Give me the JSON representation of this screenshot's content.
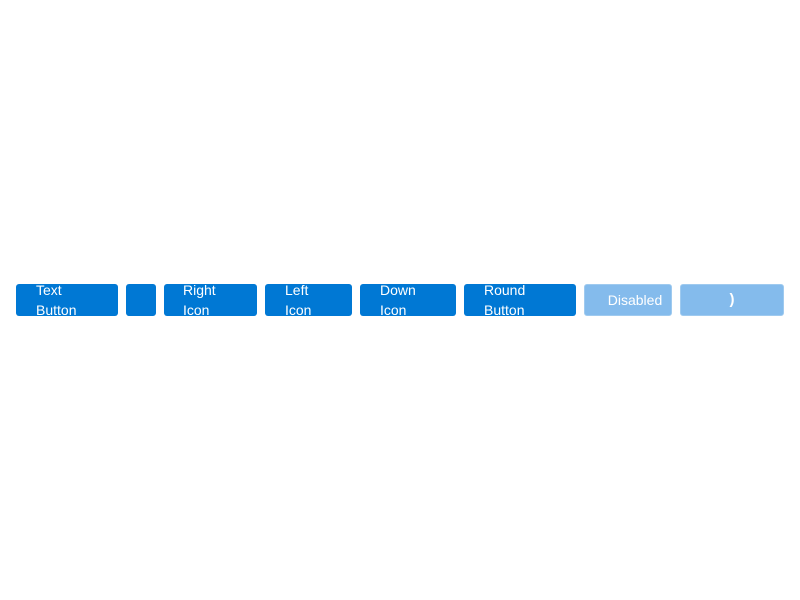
{
  "toolbar": {
    "buttons": [
      {
        "label": "Text Button"
      },
      {
        "label": ""
      },
      {
        "label": "Right Icon"
      },
      {
        "label": "Left Icon"
      },
      {
        "label": "Down Icon"
      },
      {
        "label": "Round Button"
      },
      {
        "label": "Disabled"
      },
      {
        "glyph": ")"
      }
    ]
  },
  "colors": {
    "primary": "#0078d4",
    "disabled": "#84bbec",
    "text": "#ffffff"
  }
}
